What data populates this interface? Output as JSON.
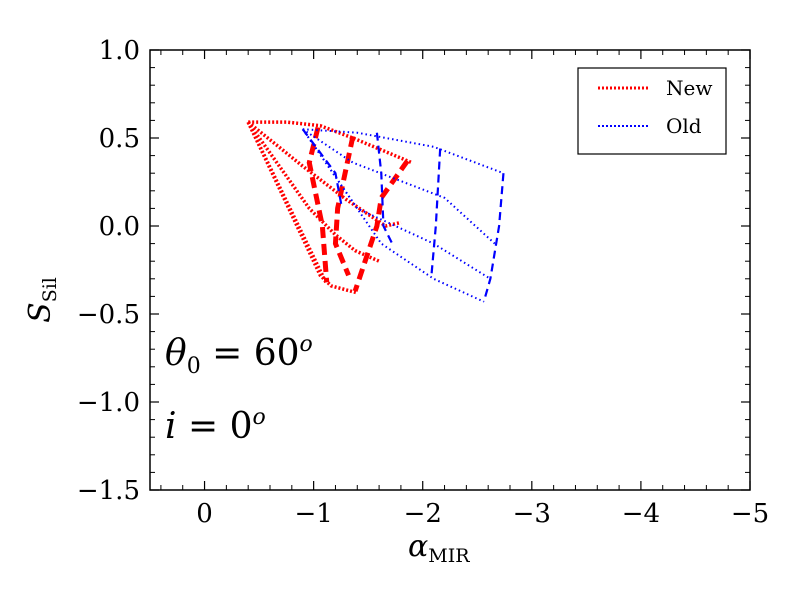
{
  "chart_data": {
    "type": "line",
    "xlabel": {
      "main": "α",
      "sub": "MIR"
    },
    "ylabel": {
      "main": "S",
      "sub": "Sil"
    },
    "xlim": [
      0.5,
      -5
    ],
    "ylim": [
      -1.5,
      1.0
    ],
    "xticks": [
      0,
      -1,
      -2,
      -3,
      -4,
      -5
    ],
    "xtick_labels": [
      "0",
      "−1",
      "−2",
      "−3",
      "−4",
      "−5"
    ],
    "yticks": [
      1.0,
      0.5,
      0.0,
      -0.5,
      -1.0,
      -1.5
    ],
    "ytick_labels": [
      "1.0",
      "0.5",
      "0.0",
      "−0.5",
      "−1.0",
      "−1.5"
    ],
    "annotations": [
      {
        "text": "θ",
        "sub": "0",
        "rest": " = 60",
        "sup": "o"
      },
      {
        "text": "i",
        "sub": "",
        "rest": " = 0",
        "sup": "o"
      }
    ],
    "legend": {
      "position": "top-right",
      "entries": [
        {
          "label": "New",
          "color": "#ff0000",
          "style": "dotted"
        },
        {
          "label": "Old",
          "color": "#0000ff",
          "style": "dotted"
        }
      ]
    },
    "series": [
      {
        "name": "New",
        "color": "#ff0000",
        "dotted_lines": [
          [
            [
              -0.4,
              0.59
            ],
            [
              -0.76,
              0.59
            ],
            [
              -1.06,
              0.57
            ],
            [
              -1.36,
              0.5
            ],
            [
              -1.9,
              0.36
            ]
          ],
          [
            [
              -0.4,
              0.59
            ],
            [
              -0.9,
              0.34
            ],
            [
              -1.3,
              0.15
            ],
            [
              -1.66,
              0.0
            ],
            [
              -1.8,
              0.02
            ]
          ],
          [
            [
              -0.4,
              0.59
            ],
            [
              -0.96,
              0.1
            ],
            [
              -1.2,
              -0.05
            ],
            [
              -1.38,
              -0.14
            ],
            [
              -1.6,
              -0.2
            ]
          ],
          [
            [
              -0.4,
              0.59
            ],
            [
              -1.06,
              -0.28
            ],
            [
              -1.16,
              -0.34
            ],
            [
              -1.4,
              -0.38
            ]
          ],
          [
            [
              -0.4,
              0.59
            ],
            [
              -1.12,
              -0.33
            ]
          ]
        ],
        "dashed_lines": [
          [
            [
              -1.04,
              0.56
            ],
            [
              -0.96,
              0.36
            ],
            [
              -1.08,
              0.0
            ],
            [
              -1.12,
              -0.32
            ]
          ],
          [
            [
              -1.36,
              0.51
            ],
            [
              -1.22,
              0.1
            ],
            [
              -1.2,
              -0.1
            ],
            [
              -1.32,
              -0.28
            ]
          ],
          [
            [
              -1.86,
              0.37
            ],
            [
              -1.62,
              0.16
            ],
            [
              -1.58,
              0.0
            ],
            [
              -1.38,
              -0.37
            ]
          ]
        ]
      },
      {
        "name": "Old",
        "color": "#0000ff",
        "dotted_lines": [
          [
            [
              -0.9,
              0.55
            ],
            [
              -1.4,
              0.53
            ],
            [
              -2.1,
              0.45
            ],
            [
              -2.74,
              0.3
            ]
          ],
          [
            [
              -0.9,
              0.55
            ],
            [
              -1.36,
              0.36
            ],
            [
              -2.2,
              0.16
            ],
            [
              -2.66,
              -0.1
            ]
          ],
          [
            [
              -0.9,
              0.55
            ],
            [
              -1.4,
              0.1
            ],
            [
              -2.1,
              -0.1
            ],
            [
              -2.62,
              -0.3
            ]
          ],
          [
            [
              -0.9,
              0.55
            ],
            [
              -1.62,
              -0.1
            ],
            [
              -2.1,
              -0.3
            ],
            [
              -2.56,
              -0.43
            ]
          ]
        ],
        "dashed_lines": [
          [
            [
              -0.9,
              0.55
            ],
            [
              -1.2,
              0.3
            ],
            [
              -1.26,
              0.1
            ]
          ],
          [
            [
              -1.58,
              0.53
            ],
            [
              -1.62,
              0.3
            ],
            [
              -1.64,
              0.0
            ],
            [
              -1.72,
              -0.1
            ]
          ],
          [
            [
              -2.16,
              0.44
            ],
            [
              -2.12,
              0.0
            ],
            [
              -2.08,
              -0.28
            ]
          ],
          [
            [
              -2.74,
              0.3
            ],
            [
              -2.7,
              0.0
            ],
            [
              -2.62,
              -0.3
            ],
            [
              -2.56,
              -0.43
            ]
          ]
        ]
      }
    ]
  }
}
